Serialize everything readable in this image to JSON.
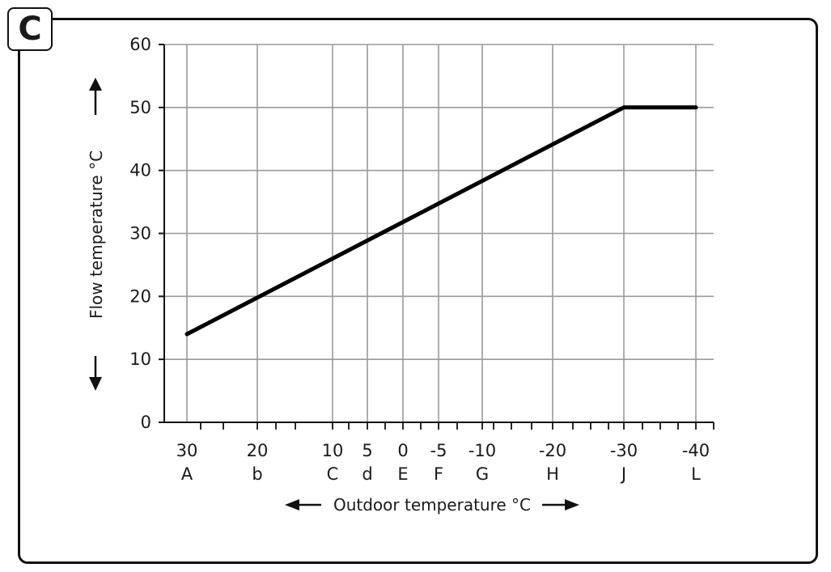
{
  "badge": "C",
  "chart_data": {
    "type": "line",
    "xlabel": "Outdoor temperature °C",
    "ylabel": "Flow temperature °C",
    "ylim": [
      0,
      60
    ],
    "y_ticks": [
      0,
      10,
      20,
      30,
      40,
      50,
      60
    ],
    "x_categories": [
      {
        "value": "30",
        "letter": "A"
      },
      {
        "value": "20",
        "letter": "b"
      },
      {
        "value": "10",
        "letter": "C"
      },
      {
        "value": "5",
        "letter": "d"
      },
      {
        "value": "0",
        "letter": "E"
      },
      {
        "value": "-5",
        "letter": "F"
      },
      {
        "value": "-10",
        "letter": "G"
      },
      {
        "value": "-20",
        "letter": "H"
      },
      {
        "value": "-30",
        "letter": "J"
      },
      {
        "value": "-40",
        "letter": "L"
      }
    ],
    "series": [
      {
        "x": [
          30,
          -30,
          -40
        ],
        "y": [
          14,
          50,
          50
        ]
      }
    ],
    "grid": true
  }
}
